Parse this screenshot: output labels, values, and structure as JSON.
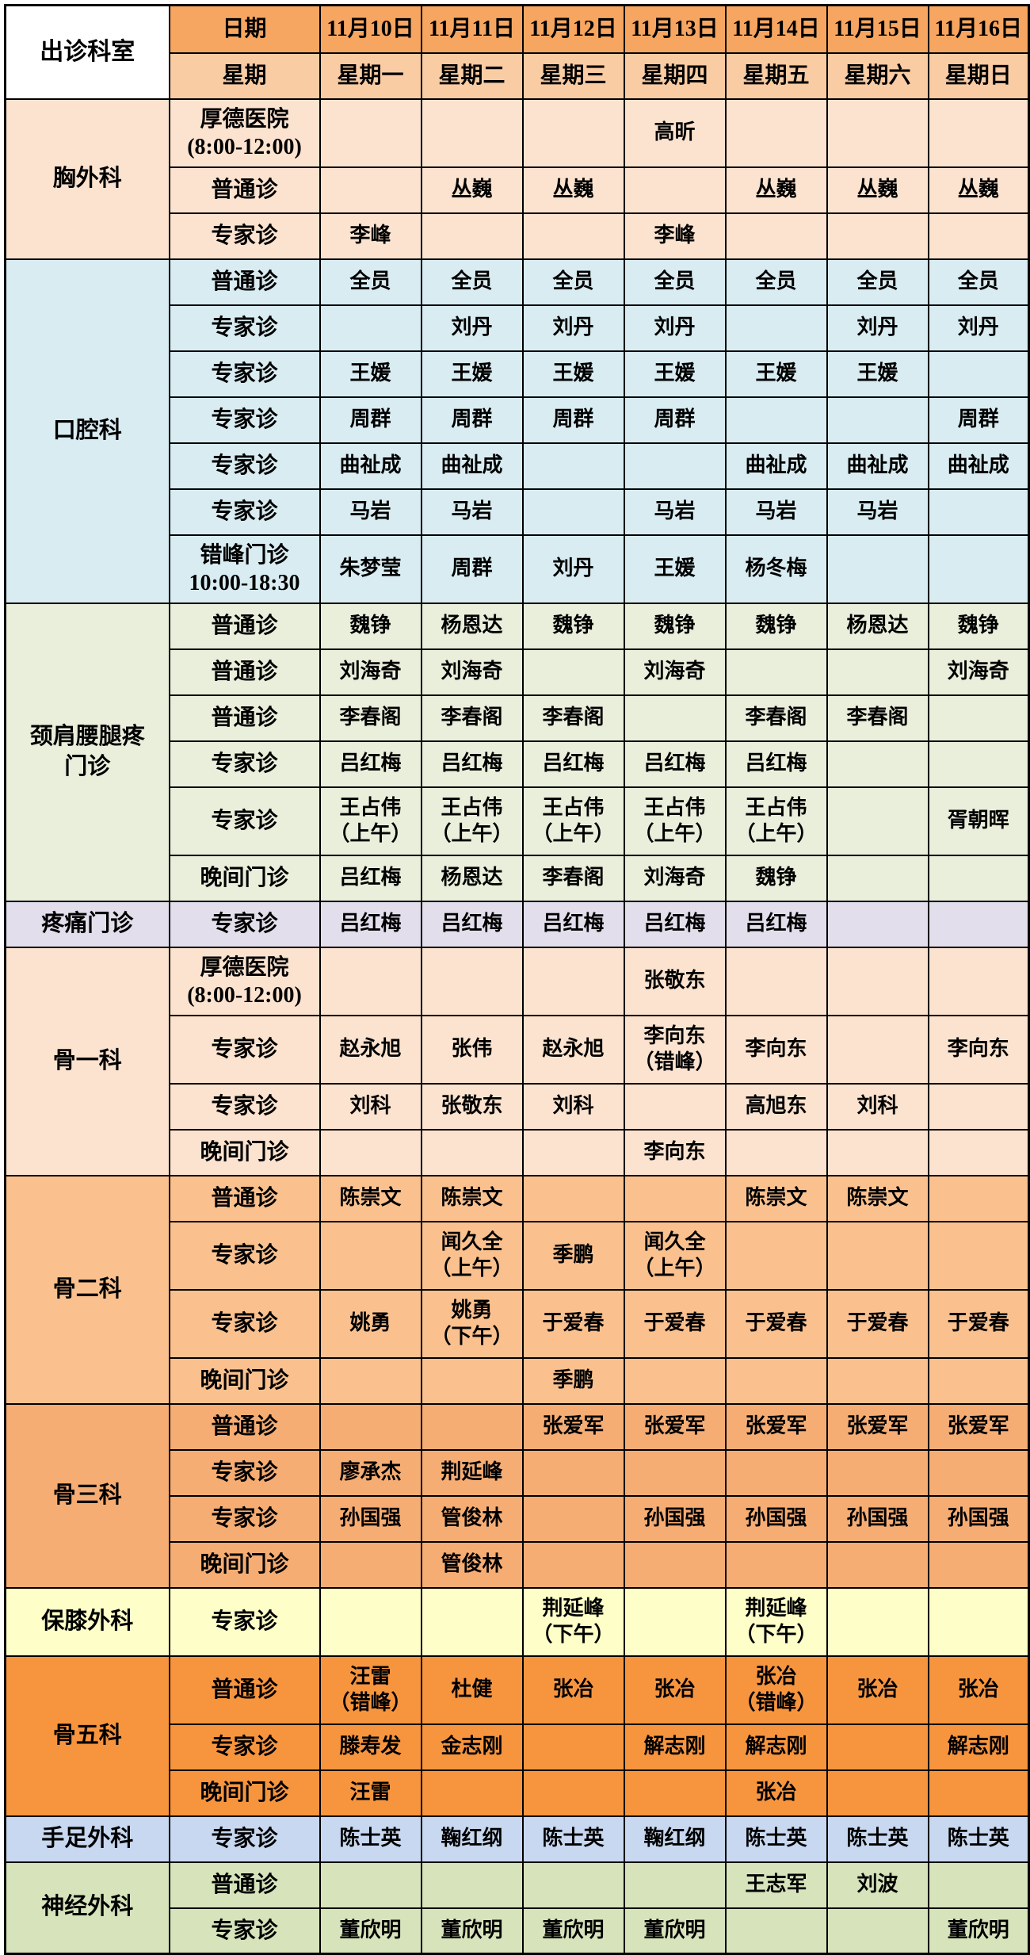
{
  "table": {
    "corner_label": "出诊科室",
    "date_row_label": "日期",
    "week_row_label": "星期",
    "dates": [
      "11月10日",
      "11月11日",
      "11月12日",
      "11月13日",
      "11月14日",
      "11月15日",
      "11月16日"
    ],
    "weekdays": [
      "星期一",
      "星期二",
      "星期三",
      "星期四",
      "星期五",
      "星期六",
      "星期日"
    ]
  },
  "colors": {
    "border": "#000000",
    "corner_bg": "#FFFFFF",
    "date_row_bg": "#F6A661",
    "week_row_bg": "#F9CCA3"
  },
  "departments": [
    {
      "name": "胸外科",
      "bg": "#FBE3CF",
      "rows": [
        {
          "type": "厚德医院\n(8:00-12:00)",
          "tall": true,
          "cells": [
            "",
            "",
            "",
            "高昕",
            "",
            "",
            ""
          ]
        },
        {
          "type": "普通诊",
          "cells": [
            "",
            "丛巍",
            "丛巍",
            "",
            "丛巍",
            "丛巍",
            "丛巍"
          ]
        },
        {
          "type": "专家诊",
          "cells": [
            "李峰",
            "",
            "",
            "李峰",
            "",
            "",
            ""
          ]
        }
      ]
    },
    {
      "name": "口腔科",
      "bg": "#D8ECF2",
      "rows": [
        {
          "type": "普通诊",
          "cells": [
            "全员",
            "全员",
            "全员",
            "全员",
            "全员",
            "全员",
            "全员"
          ]
        },
        {
          "type": "专家诊",
          "cells": [
            "",
            "刘丹",
            "刘丹",
            "刘丹",
            "",
            "刘丹",
            "刘丹"
          ]
        },
        {
          "type": "专家诊",
          "cells": [
            "王媛",
            "王媛",
            "王媛",
            "王媛",
            "王媛",
            "王媛",
            ""
          ]
        },
        {
          "type": "专家诊",
          "cells": [
            "周群",
            "周群",
            "周群",
            "周群",
            "",
            "",
            "周群"
          ]
        },
        {
          "type": "专家诊",
          "cells": [
            "曲祉成",
            "曲祉成",
            "",
            "",
            "曲祉成",
            "曲祉成",
            "曲祉成"
          ]
        },
        {
          "type": "专家诊",
          "cells": [
            "马岩",
            "马岩",
            "",
            "马岩",
            "马岩",
            "马岩",
            ""
          ]
        },
        {
          "type": "错峰门诊\n10:00-18:30",
          "tall": true,
          "cells": [
            "朱梦莹",
            "周群",
            "刘丹",
            "王媛",
            "杨冬梅",
            "",
            ""
          ]
        }
      ]
    },
    {
      "name": "颈肩腰腿疼\n门诊",
      "bg": "#E9EFDB",
      "rows": [
        {
          "type": "普通诊",
          "cells": [
            "魏铮",
            "杨恩达",
            "魏铮",
            "魏铮",
            "魏铮",
            "杨恩达",
            "魏铮"
          ]
        },
        {
          "type": "普通诊",
          "cells": [
            "刘海奇",
            "刘海奇",
            "",
            "刘海奇",
            "",
            "",
            "刘海奇"
          ]
        },
        {
          "type": "普通诊",
          "cells": [
            "李春阁",
            "李春阁",
            "李春阁",
            "",
            "李春阁",
            "李春阁",
            ""
          ]
        },
        {
          "type": "专家诊",
          "cells": [
            "吕红梅",
            "吕红梅",
            "吕红梅",
            "吕红梅",
            "吕红梅",
            "",
            ""
          ]
        },
        {
          "type": "专家诊",
          "tall": true,
          "cells": [
            "王占伟\n（上午）",
            "王占伟\n（上午）",
            "王占伟\n（上午）",
            "王占伟\n（上午）",
            "王占伟\n（上午）",
            "",
            "胥朝晖"
          ]
        },
        {
          "type": "晚间门诊",
          "cells": [
            "吕红梅",
            "杨恩达",
            "李春阁",
            "刘海奇",
            "魏铮",
            "",
            ""
          ]
        }
      ]
    },
    {
      "name": "疼痛门诊",
      "bg": "#E2DEEC",
      "rows": [
        {
          "type": "专家诊",
          "cells": [
            "吕红梅",
            "吕红梅",
            "吕红梅",
            "吕红梅",
            "吕红梅",
            "",
            ""
          ]
        }
      ]
    },
    {
      "name": "骨一科",
      "bg": "#FBE3CF",
      "rows": [
        {
          "type": "厚德医院\n(8:00-12:00)",
          "tall": true,
          "cells": [
            "",
            "",
            "",
            "张敬东",
            "",
            "",
            ""
          ]
        },
        {
          "type": "专家诊",
          "tall": true,
          "cells": [
            "赵永旭",
            "张伟",
            "赵永旭",
            "李向东\n（错峰）",
            "李向东",
            "",
            "李向东"
          ]
        },
        {
          "type": "专家诊",
          "cells": [
            "刘科",
            "张敬东",
            "刘科",
            "",
            "高旭东",
            "刘科",
            ""
          ]
        },
        {
          "type": "晚间门诊",
          "cells": [
            "",
            "",
            "",
            "李向东",
            "",
            "",
            ""
          ]
        }
      ]
    },
    {
      "name": "骨二科",
      "bg": "#FAC18F",
      "rows": [
        {
          "type": "普通诊",
          "cells": [
            "陈崇文",
            "陈崇文",
            "",
            "",
            "陈崇文",
            "陈崇文",
            ""
          ]
        },
        {
          "type": "专家诊",
          "tall": true,
          "cells": [
            "",
            "闻久全\n（上午）",
            "季鹏",
            "闻久全\n（上午）",
            "",
            "",
            ""
          ]
        },
        {
          "type": "专家诊",
          "tall": true,
          "cells": [
            "姚勇",
            "姚勇\n（下午）",
            "于爱春",
            "于爱春",
            "于爱春",
            "于爱春",
            "于爱春"
          ]
        },
        {
          "type": "晚间门诊",
          "cells": [
            "",
            "",
            "季鹏",
            "",
            "",
            "",
            ""
          ]
        }
      ]
    },
    {
      "name": "骨三科",
      "bg": "#F6AD74",
      "rows": [
        {
          "type": "普通诊",
          "cells": [
            "",
            "",
            "张爱军",
            "张爱军",
            "张爱军",
            "张爱军",
            "张爱军"
          ]
        },
        {
          "type": "专家诊",
          "cells": [
            "廖承杰",
            "荆延峰",
            "",
            "",
            "",
            "",
            ""
          ]
        },
        {
          "type": "专家诊",
          "cells": [
            "孙国强",
            "管俊林",
            "",
            "孙国强",
            "孙国强",
            "孙国强",
            "孙国强"
          ]
        },
        {
          "type": "晚间门诊",
          "cells": [
            "",
            "管俊林",
            "",
            "",
            "",
            "",
            ""
          ]
        }
      ]
    },
    {
      "name": "保膝外科",
      "bg": "#FEFEC8",
      "rows": [
        {
          "type": "专家诊",
          "tall": true,
          "cells": [
            "",
            "",
            "荆延峰\n（下午）",
            "",
            "荆延峰\n（下午）",
            "",
            ""
          ]
        }
      ]
    },
    {
      "name": "骨五科",
      "bg": "#F7953F",
      "rows": [
        {
          "type": "普通诊",
          "tall": true,
          "cells": [
            "汪雷\n（错峰）",
            "杜健",
            "张冶",
            "张冶",
            "张冶\n（错峰）",
            "张冶",
            "张冶"
          ]
        },
        {
          "type": "专家诊",
          "cells": [
            "滕寿发",
            "金志刚",
            "",
            "解志刚",
            "解志刚",
            "",
            "解志刚"
          ]
        },
        {
          "type": "晚间门诊",
          "cells": [
            "汪雷",
            "",
            "",
            "",
            "张冶",
            "",
            ""
          ]
        }
      ]
    },
    {
      "name": "手足外科",
      "bg": "#C7D8F0",
      "rows": [
        {
          "type": "专家诊",
          "cells": [
            "陈士英",
            "鞠红纲",
            "陈士英",
            "鞠红纲",
            "陈士英",
            "陈士英",
            "陈士英"
          ]
        }
      ]
    },
    {
      "name": "神经外科",
      "bg": "#D6E3BB",
      "rows": [
        {
          "type": "普通诊",
          "cells": [
            "",
            "",
            "",
            "",
            "王志军",
            "刘波",
            ""
          ]
        },
        {
          "type": "专家诊",
          "cells": [
            "董欣明",
            "董欣明",
            "董欣明",
            "董欣明",
            "",
            "",
            "董欣明"
          ]
        }
      ]
    }
  ]
}
